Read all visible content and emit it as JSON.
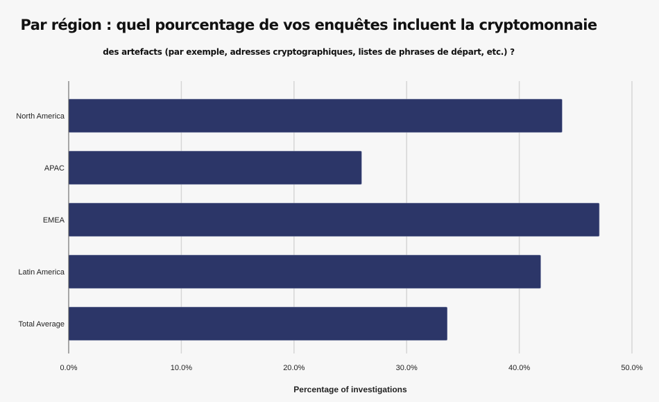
{
  "chart_data": {
    "type": "bar",
    "orientation": "horizontal",
    "title": "Par région : quel pourcentage de vos enquêtes incluent la cryptomonnaie",
    "subtitle": "des artefacts (par exemple, adresses cryptographiques, listes de phrases de départ, etc.) ?",
    "xlabel": "Percentage of investigations",
    "ylabel": "",
    "categories": [
      "North America",
      "APAC",
      "EMEA",
      "Latin America",
      "Total Average"
    ],
    "values": [
      43.8,
      26.0,
      47.1,
      41.9,
      33.6
    ],
    "xlim": [
      0,
      50
    ],
    "xticks": [
      0,
      10,
      20,
      30,
      40,
      50
    ],
    "xtick_labels": [
      "0.0%",
      "10.0%",
      "20.0%",
      "30.0%",
      "40.0%",
      "50.0%"
    ],
    "grid": true,
    "bar_color": "#2c3668",
    "legend": "none"
  }
}
